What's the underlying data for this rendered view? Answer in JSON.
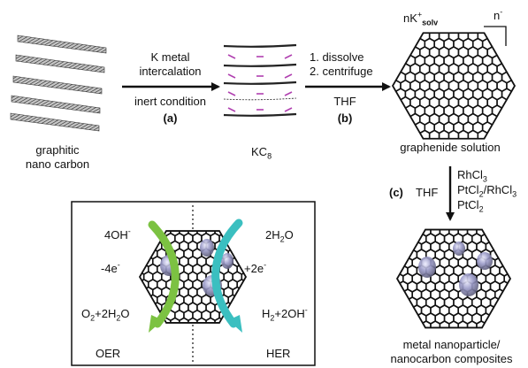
{
  "steps": {
    "a": {
      "line1": "K metal",
      "line2": "intercalation",
      "line3": "inert condition",
      "tag": "(a)"
    },
    "b": {
      "line1": "1. dissolve",
      "line2": "2. centrifuge",
      "line3": "THF",
      "tag": "(b)"
    },
    "c": {
      "tag": "(c)",
      "solvent": "THF",
      "reagents": [
        {
          "main": "RhCl",
          "sub": "3"
        },
        {
          "main": "PtCl",
          "sub": "2",
          "rest": "/RhCl",
          "sub2": "3"
        },
        {
          "main": "PtCl",
          "sub": "2"
        }
      ]
    }
  },
  "labels": {
    "graphitic": [
      "graphitic",
      "nano carbon"
    ],
    "kc8": {
      "main": "KC",
      "sub": "8"
    },
    "graphenide": "graphenide solution",
    "counter_ion": {
      "pre": "nK",
      "sup": "+",
      "sub": "solv"
    },
    "charge": {
      "pre": "n",
      "sup": "-"
    },
    "composite": [
      "metal nanoparticle/",
      "nanocarbon composites"
    ]
  },
  "inset": {
    "oer": "OER",
    "her": "HER",
    "oh": {
      "pre": "4OH",
      "sup": "-"
    },
    "minus4e": {
      "pre": "-4e",
      "sup": "-"
    },
    "o2": {
      "a": "O",
      "a_sub": "2",
      "b": "+2H",
      "b_sub": "2",
      "c": "O"
    },
    "h2o": {
      "a": "2H",
      "a_sub": "2",
      "b": "O"
    },
    "plus2e": {
      "pre": "+2e",
      "sup": "-"
    },
    "h2": {
      "a": "H",
      "a_sub": "2",
      "b": "+2OH",
      "sup": "-"
    }
  },
  "colors": {
    "oer_arrow": "#7cc242",
    "her_arrow": "#3bbfc0",
    "dash": "#b040b0",
    "particle": "#8c8cb8",
    "stroke": "#111111"
  }
}
